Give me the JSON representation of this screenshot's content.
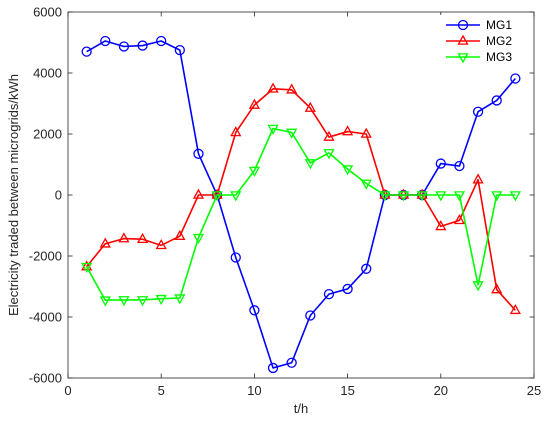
{
  "chart_data": {
    "type": "line",
    "title": "",
    "xlabel": "t/h",
    "ylabel": "Electricity traded between microgrids/kWh",
    "xlim": [
      0,
      25
    ],
    "ylim": [
      -6000,
      6000
    ],
    "xticks": [
      0,
      5,
      10,
      15,
      20,
      25
    ],
    "yticks": [
      -6000,
      -4000,
      -2000,
      0,
      2000,
      4000,
      6000
    ],
    "xtick_labels": [
      "0",
      "5",
      "10",
      "15",
      "20",
      "25"
    ],
    "ytick_labels": [
      "-6000",
      "-4000",
      "-2000",
      "0",
      "2000",
      "4000",
      "6000"
    ],
    "grid": false,
    "legend_position": "top-right",
    "x": [
      1,
      2,
      3,
      4,
      5,
      6,
      7,
      8,
      9,
      10,
      11,
      12,
      13,
      14,
      15,
      16,
      17,
      18,
      19,
      20,
      21,
      22,
      23,
      24
    ],
    "series": [
      {
        "name": "MG1",
        "color": "#0000ff",
        "marker": "circle",
        "values": [
          4700,
          5050,
          4870,
          4900,
          5050,
          4750,
          1350,
          0,
          -2050,
          -3780,
          -5670,
          -5500,
          -3950,
          -3250,
          -3080,
          -2420,
          0,
          0,
          0,
          1030,
          950,
          2730,
          3100,
          3820
        ]
      },
      {
        "name": "MG2",
        "color": "#ff0000",
        "marker": "triangle-up",
        "values": [
          -2350,
          -1600,
          -1430,
          -1450,
          -1650,
          -1350,
          0,
          0,
          2050,
          2950,
          3480,
          3450,
          2850,
          1900,
          2080,
          2000,
          0,
          0,
          0,
          -1030,
          -830,
          500,
          -3100,
          -3780
        ]
      },
      {
        "name": "MG3",
        "color": "#00ff00",
        "marker": "triangle-down",
        "values": [
          -2350,
          -3450,
          -3440,
          -3440,
          -3400,
          -3380,
          -1400,
          0,
          0,
          800,
          2180,
          2050,
          1050,
          1380,
          850,
          380,
          0,
          0,
          0,
          0,
          0,
          -2950,
          0,
          0
        ]
      }
    ]
  }
}
